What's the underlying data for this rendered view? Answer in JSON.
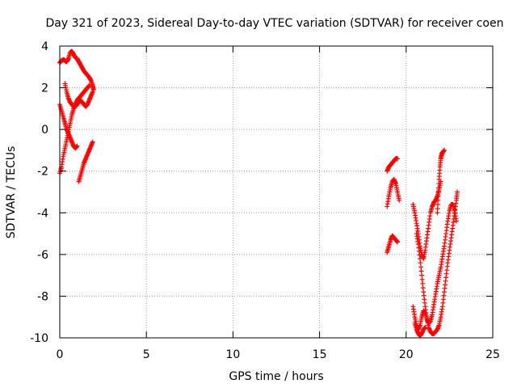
{
  "chart_data": {
    "type": "scatter",
    "title": "Day 321 of 2023, Sidereal Day-to-day VTEC variation (SDTVAR) for receiver coen",
    "xlabel": "GPS time / hours",
    "ylabel": "SDTVAR / TECUs",
    "xlim": [
      0,
      25
    ],
    "ylim": [
      -10,
      4
    ],
    "xticks": [
      0,
      5,
      10,
      15,
      20,
      25
    ],
    "yticks": [
      -10,
      -8,
      -6,
      -4,
      -2,
      0,
      2,
      4
    ],
    "grid": true,
    "marker": "+",
    "colors": {
      "series": "#ff0000",
      "grid": "#a0a0a0",
      "axis": "#000000"
    },
    "series": [
      {
        "tracks": [
          [
            [
              0.0,
              3.2
            ],
            [
              0.1,
              3.3
            ],
            [
              0.2,
              3.35
            ],
            [
              0.3,
              3.3
            ],
            [
              0.4,
              3.25
            ],
            [
              0.5,
              3.4
            ],
            [
              0.6,
              3.7
            ],
            [
              0.7,
              3.75
            ],
            [
              0.8,
              3.6
            ],
            [
              0.9,
              3.45
            ],
            [
              1.0,
              3.4
            ],
            [
              1.1,
              3.25
            ],
            [
              1.2,
              3.1
            ],
            [
              1.3,
              2.95
            ],
            [
              1.4,
              2.8
            ],
            [
              1.5,
              2.7
            ],
            [
              1.6,
              2.6
            ],
            [
              1.7,
              2.5
            ],
            [
              1.8,
              2.35
            ],
            [
              1.9,
              2.1
            ],
            [
              1.95,
              1.9
            ]
          ],
          [
            [
              0.0,
              1.2
            ],
            [
              0.1,
              0.9
            ],
            [
              0.2,
              0.6
            ],
            [
              0.3,
              0.3
            ],
            [
              0.4,
              0.0
            ],
            [
              0.5,
              -0.2
            ],
            [
              0.6,
              -0.4
            ],
            [
              0.7,
              -0.6
            ],
            [
              0.8,
              -0.8
            ],
            [
              0.9,
              -0.9
            ],
            [
              1.0,
              -0.8
            ]
          ],
          [
            [
              0.0,
              -2.1
            ],
            [
              0.1,
              -1.8
            ],
            [
              0.2,
              -1.3
            ],
            [
              0.3,
              -0.9
            ],
            [
              0.4,
              -0.5
            ],
            [
              0.5,
              -0.1
            ],
            [
              0.6,
              0.3
            ],
            [
              0.7,
              0.7
            ],
            [
              0.8,
              1.0
            ],
            [
              0.9,
              1.2
            ],
            [
              1.0,
              1.4
            ],
            [
              1.1,
              1.5
            ],
            [
              1.2,
              1.6
            ],
            [
              1.3,
              1.7
            ],
            [
              1.4,
              1.8
            ],
            [
              1.5,
              1.9
            ],
            [
              1.6,
              2.0
            ],
            [
              1.7,
              2.1
            ]
          ],
          [
            [
              0.3,
              2.2
            ],
            [
              0.4,
              1.8
            ],
            [
              0.5,
              1.5
            ],
            [
              0.6,
              1.3
            ],
            [
              0.7,
              1.2
            ],
            [
              0.8,
              1.1
            ],
            [
              0.9,
              1.1
            ],
            [
              1.0,
              1.2
            ],
            [
              1.1,
              1.3
            ],
            [
              1.2,
              1.4
            ],
            [
              1.3,
              1.3
            ],
            [
              1.4,
              1.2
            ],
            [
              1.5,
              1.1
            ],
            [
              1.6,
              1.2
            ],
            [
              1.7,
              1.4
            ],
            [
              1.8,
              1.6
            ],
            [
              1.9,
              1.8
            ]
          ],
          [
            [
              1.1,
              -2.5
            ],
            [
              1.2,
              -2.2
            ],
            [
              1.3,
              -1.9
            ],
            [
              1.4,
              -1.6
            ],
            [
              1.5,
              -1.4
            ],
            [
              1.6,
              -1.2
            ],
            [
              1.7,
              -1.0
            ],
            [
              1.8,
              -0.8
            ],
            [
              1.9,
              -0.6
            ]
          ],
          [
            [
              18.9,
              -2.0
            ],
            [
              19.0,
              -1.8
            ],
            [
              19.1,
              -1.7
            ],
            [
              19.2,
              -1.6
            ],
            [
              19.3,
              -1.5
            ],
            [
              19.4,
              -1.4
            ],
            [
              19.5,
              -1.4
            ]
          ],
          [
            [
              18.9,
              -3.7
            ],
            [
              19.0,
              -3.2
            ],
            [
              19.1,
              -2.8
            ],
            [
              19.2,
              -2.5
            ],
            [
              19.3,
              -2.4
            ],
            [
              19.4,
              -2.6
            ],
            [
              19.5,
              -3.0
            ],
            [
              19.6,
              -3.4
            ]
          ],
          [
            [
              18.9,
              -5.9
            ],
            [
              19.0,
              -5.6
            ],
            [
              19.1,
              -5.3
            ],
            [
              19.2,
              -5.1
            ],
            [
              19.3,
              -5.2
            ],
            [
              19.4,
              -5.3
            ],
            [
              19.5,
              -5.4
            ]
          ],
          [
            [
              20.4,
              -3.6
            ],
            [
              20.5,
              -4.0
            ],
            [
              20.6,
              -4.5
            ],
            [
              20.7,
              -5.0
            ],
            [
              20.8,
              -5.6
            ],
            [
              20.9,
              -6.0
            ],
            [
              21.0,
              -6.2
            ],
            [
              21.1,
              -5.8
            ],
            [
              21.2,
              -5.2
            ],
            [
              21.3,
              -4.6
            ],
            [
              21.4,
              -4.0
            ],
            [
              21.5,
              -3.7
            ],
            [
              21.6,
              -3.5
            ],
            [
              21.7,
              -3.4
            ],
            [
              21.8,
              -3.2
            ],
            [
              21.9,
              -2.9
            ],
            [
              22.0,
              -2.5
            ]
          ],
          [
            [
              20.4,
              -8.5
            ],
            [
              20.5,
              -9.0
            ],
            [
              20.6,
              -9.4
            ],
            [
              20.7,
              -9.6
            ],
            [
              20.8,
              -9.4
            ],
            [
              20.9,
              -9.0
            ],
            [
              21.0,
              -8.7
            ],
            [
              21.1,
              -8.8
            ],
            [
              21.2,
              -9.1
            ],
            [
              21.3,
              -9.3
            ],
            [
              21.4,
              -9.2
            ],
            [
              21.5,
              -8.9
            ],
            [
              21.6,
              -8.4
            ],
            [
              21.7,
              -7.9
            ],
            [
              21.8,
              -7.4
            ],
            [
              21.9,
              -7.0
            ],
            [
              22.0,
              -6.6
            ],
            [
              22.1,
              -6.1
            ],
            [
              22.2,
              -5.6
            ],
            [
              22.3,
              -5.0
            ],
            [
              22.4,
              -4.4
            ],
            [
              22.5,
              -3.9
            ],
            [
              22.6,
              -3.6
            ],
            [
              22.7,
              -3.6
            ],
            [
              22.8,
              -3.9
            ],
            [
              22.9,
              -4.4
            ]
          ],
          [
            [
              20.6,
              -5.0
            ],
            [
              20.7,
              -5.5
            ],
            [
              20.8,
              -6.2
            ],
            [
              20.9,
              -7.0
            ],
            [
              21.0,
              -7.8
            ],
            [
              21.1,
              -8.5
            ],
            [
              21.2,
              -9.1
            ],
            [
              21.3,
              -9.5
            ],
            [
              21.4,
              -9.7
            ],
            [
              21.5,
              -9.8
            ],
            [
              21.6,
              -9.8
            ],
            [
              21.7,
              -9.7
            ],
            [
              21.8,
              -9.6
            ],
            [
              21.9,
              -9.4
            ],
            [
              22.0,
              -9.0
            ],
            [
              22.1,
              -8.5
            ],
            [
              22.2,
              -7.8
            ],
            [
              22.3,
              -7.1
            ],
            [
              22.4,
              -6.4
            ],
            [
              22.5,
              -5.8
            ],
            [
              22.6,
              -5.2
            ],
            [
              22.7,
              -4.6
            ],
            [
              22.8,
              -4.0
            ],
            [
              22.9,
              -3.4
            ],
            [
              22.95,
              -3.0
            ]
          ],
          [
            [
              21.8,
              -4.0
            ],
            [
              21.85,
              -3.2
            ],
            [
              21.9,
              -2.4
            ],
            [
              21.95,
              -1.8
            ],
            [
              22.0,
              -1.4
            ],
            [
              22.05,
              -1.2
            ],
            [
              22.1,
              -1.1
            ],
            [
              22.2,
              -1.0
            ]
          ],
          [
            [
              20.5,
              -9.3
            ],
            [
              20.6,
              -9.6
            ],
            [
              20.7,
              -9.8
            ],
            [
              20.8,
              -9.9
            ],
            [
              20.9,
              -9.8
            ],
            [
              21.0,
              -9.6
            ],
            [
              21.1,
              -9.5
            ]
          ]
        ]
      }
    ]
  }
}
